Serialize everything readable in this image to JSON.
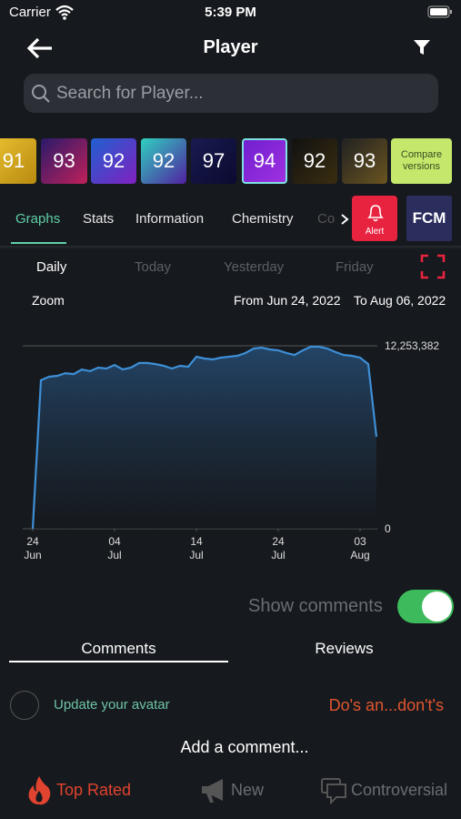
{
  "status": {
    "carrier": "Carrier",
    "time": "5:39 PM"
  },
  "header": {
    "title": "Player"
  },
  "search": {
    "placeholder": "Search for Player..."
  },
  "cards": {
    "ratings": [
      "91",
      "93",
      "92",
      "92",
      "97",
      "94",
      "92",
      "93"
    ],
    "compare": [
      "Compare",
      "versions"
    ]
  },
  "tabs": {
    "items": [
      "Graphs",
      "Stats",
      "Information",
      "Chemistry",
      "Co"
    ],
    "alert": "Alert",
    "fcm": "FCM"
  },
  "periods": [
    "Daily",
    "Today",
    "Yesterday",
    "Friday"
  ],
  "range": {
    "zoom": "Zoom",
    "from": "From Jun 24, 2022",
    "to": "To Aug 06, 2022"
  },
  "chart_data": {
    "type": "area",
    "x": [
      "2022-06-24",
      "2022-06-25",
      "2022-06-26",
      "2022-06-27",
      "2022-06-28",
      "2022-06-29",
      "2022-06-30",
      "2022-07-01",
      "2022-07-02",
      "2022-07-03",
      "2022-07-04",
      "2022-07-05",
      "2022-07-06",
      "2022-07-07",
      "2022-07-08",
      "2022-07-09",
      "2022-07-10",
      "2022-07-11",
      "2022-07-12",
      "2022-07-13",
      "2022-07-14",
      "2022-07-15",
      "2022-07-16",
      "2022-07-17",
      "2022-07-18",
      "2022-07-19",
      "2022-07-20",
      "2022-07-21",
      "2022-07-22",
      "2022-07-23",
      "2022-07-24",
      "2022-07-25",
      "2022-07-26",
      "2022-07-27",
      "2022-07-28",
      "2022-07-29",
      "2022-07-30",
      "2022-07-31",
      "2022-08-01",
      "2022-08-02",
      "2022-08-03",
      "2022-08-04",
      "2022-08-05"
    ],
    "values": [
      0,
      9940000,
      10180000,
      10240000,
      10420000,
      10360000,
      10670000,
      10550000,
      10790000,
      10730000,
      10970000,
      10670000,
      10790000,
      11100000,
      11100000,
      11030000,
      10910000,
      10730000,
      10910000,
      10850000,
      11520000,
      11400000,
      11340000,
      11460000,
      11520000,
      11580000,
      11770000,
      12070000,
      12130000,
      12010000,
      11950000,
      11770000,
      11640000,
      11950000,
      12190000,
      12190000,
      12070000,
      11830000,
      11640000,
      11580000,
      11460000,
      11030000,
      6160000
    ],
    "color": "#3d8fd6",
    "xlim": [
      "2022-06-24",
      "2022-08-06"
    ],
    "xticks": [
      {
        "value": "2022-06-24",
        "label": [
          "24",
          "Jun"
        ]
      },
      {
        "value": "2022-07-04",
        "label": [
          "04",
          "Jul"
        ]
      },
      {
        "value": "2022-07-14",
        "label": [
          "14",
          "Jul"
        ]
      },
      {
        "value": "2022-07-24",
        "label": [
          "24",
          "Jul"
        ]
      },
      {
        "value": "2022-08-03",
        "label": [
          "03",
          "Aug"
        ]
      }
    ],
    "ylim": [
      0,
      12253382
    ],
    "yticks": [
      0,
      {
        "value": 12253382,
        "label": "12,253,382"
      }
    ]
  },
  "comments": {
    "show": "Show comments",
    "tabs": [
      "Comments",
      "Reviews"
    ],
    "avatar": "Update your avatar",
    "dos": "Do's an...don't's",
    "add": "Add a comment..."
  },
  "bottom": [
    "Top Rated",
    "New",
    "Controversial"
  ]
}
